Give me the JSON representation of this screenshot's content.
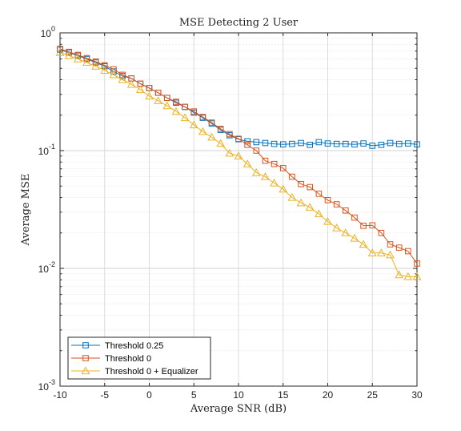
{
  "chart_data": {
    "type": "line",
    "title": "MSE Detecting 2 User",
    "xlabel": "Average SNR (dB)",
    "ylabel": "Average MSE",
    "yscale": "log",
    "xlim": [
      -10,
      30
    ],
    "ylim": [
      0.001,
      1
    ],
    "xticks": [
      "-10",
      "-5",
      "0",
      "5",
      "10",
      "15",
      "20",
      "25",
      "30"
    ],
    "yticks": [
      {
        "base": "10",
        "exp": "0"
      },
      {
        "base": "10",
        "exp": "-1"
      },
      {
        "base": "10",
        "exp": "-2"
      },
      {
        "base": "10",
        "exp": "-3"
      }
    ],
    "grid": true,
    "minor_grid": true,
    "legend_position": "bottom-left",
    "x": [
      -10,
      -9,
      -8,
      -7,
      -6,
      -5,
      -4,
      -3,
      -2,
      -1,
      0,
      1,
      2,
      3,
      4,
      5,
      6,
      7,
      8,
      9,
      10,
      11,
      12,
      13,
      14,
      15,
      16,
      17,
      18,
      19,
      20,
      21,
      22,
      23,
      24,
      25,
      26,
      27,
      28,
      29,
      30
    ],
    "series": [
      {
        "name": "Threshold 0.25",
        "color": "#0072BD",
        "marker": "square",
        "values": [
          0.72,
          0.68,
          0.64,
          0.6,
          0.56,
          0.52,
          0.47,
          0.43,
          0.41,
          0.37,
          0.34,
          0.31,
          0.28,
          0.255,
          0.235,
          0.21,
          0.19,
          0.17,
          0.15,
          0.135,
          0.125,
          0.12,
          0.118,
          0.116,
          0.114,
          0.113,
          0.114,
          0.116,
          0.112,
          0.118,
          0.115,
          0.114,
          0.114,
          0.113,
          0.115,
          0.11,
          0.112,
          0.116,
          0.114,
          0.115,
          0.113
        ]
      },
      {
        "name": "Threshold 0",
        "color": "#D95319",
        "marker": "square",
        "values": [
          0.73,
          0.69,
          0.65,
          0.61,
          0.57,
          0.53,
          0.49,
          0.44,
          0.41,
          0.37,
          0.34,
          0.31,
          0.28,
          0.26,
          0.235,
          0.215,
          0.193,
          0.173,
          0.153,
          0.138,
          0.126,
          0.112,
          0.1,
          0.082,
          0.077,
          0.071,
          0.06,
          0.052,
          0.049,
          0.043,
          0.038,
          0.035,
          0.031,
          0.027,
          0.023,
          0.0232,
          0.02,
          0.016,
          0.015,
          0.014,
          0.011
        ]
      },
      {
        "name": "Threshold 0 + Equalizer",
        "color": "#EDB120",
        "marker": "triangle",
        "values": [
          0.68,
          0.64,
          0.6,
          0.56,
          0.52,
          0.48,
          0.44,
          0.4,
          0.365,
          0.33,
          0.29,
          0.265,
          0.24,
          0.215,
          0.19,
          0.165,
          0.145,
          0.13,
          0.115,
          0.095,
          0.09,
          0.077,
          0.065,
          0.06,
          0.053,
          0.047,
          0.04,
          0.036,
          0.033,
          0.029,
          0.025,
          0.022,
          0.02,
          0.018,
          0.016,
          0.0135,
          0.0135,
          0.013,
          0.0088,
          0.0085,
          0.0085
        ]
      }
    ]
  }
}
